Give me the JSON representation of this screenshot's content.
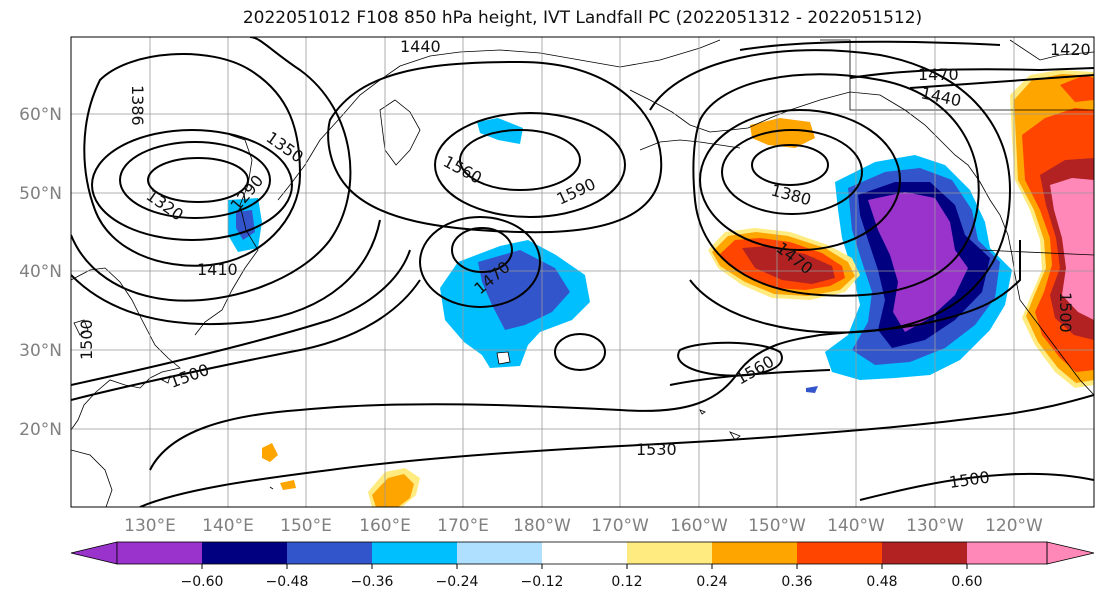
{
  "title": "2022051012 F108 850 hPa height, IVT Landfall PC (2022051312 - 2022051512)",
  "map": {
    "lat_labels": [
      "60°N",
      "50°N",
      "40°N",
      "30°N",
      "20°N"
    ],
    "lon_labels": [
      "130°E",
      "140°E",
      "150°E",
      "160°E",
      "170°E",
      "180°W",
      "170°W",
      "160°W",
      "150°W",
      "140°W",
      "130°W",
      "120°W"
    ],
    "height_contour_labels": [
      "1440",
      "1470",
      "1440",
      "1420",
      "1350",
      "1320",
      "1290",
      "1386",
      "1410",
      "1560",
      "1590",
      "1470",
      "1380",
      "1470",
      "1500",
      "1500",
      "1560",
      "1530",
      "1500",
      "1500"
    ],
    "ivt_features": [
      {
        "name": "negative-anomaly-japan",
        "level": "-0.36"
      },
      {
        "name": "negative-anomaly-central-pacific",
        "level": "-0.48"
      },
      {
        "name": "negative-anomaly-northeast-pacific",
        "level": "-0.60"
      },
      {
        "name": "positive-anomaly-gulf-of-alaska",
        "level": "0.24"
      },
      {
        "name": "positive-anomaly-midpacific",
        "level": "0.48"
      },
      {
        "name": "positive-anomaly-west-coast",
        "level": "0.60"
      }
    ]
  },
  "colorbar": {
    "colors": [
      "#9933cc",
      "#000080",
      "#3355cc",
      "#00bfff",
      "#b0e0ff",
      "#ffffff",
      "#ffeb80",
      "#ffa500",
      "#ff4500",
      "#b22222",
      "#ff88b8"
    ],
    "tick_labels": [
      "−0.60",
      "−0.48",
      "−0.36",
      "−0.24",
      "−0.12",
      "0.12",
      "0.24",
      "0.36",
      "0.48",
      "0.60"
    ]
  }
}
